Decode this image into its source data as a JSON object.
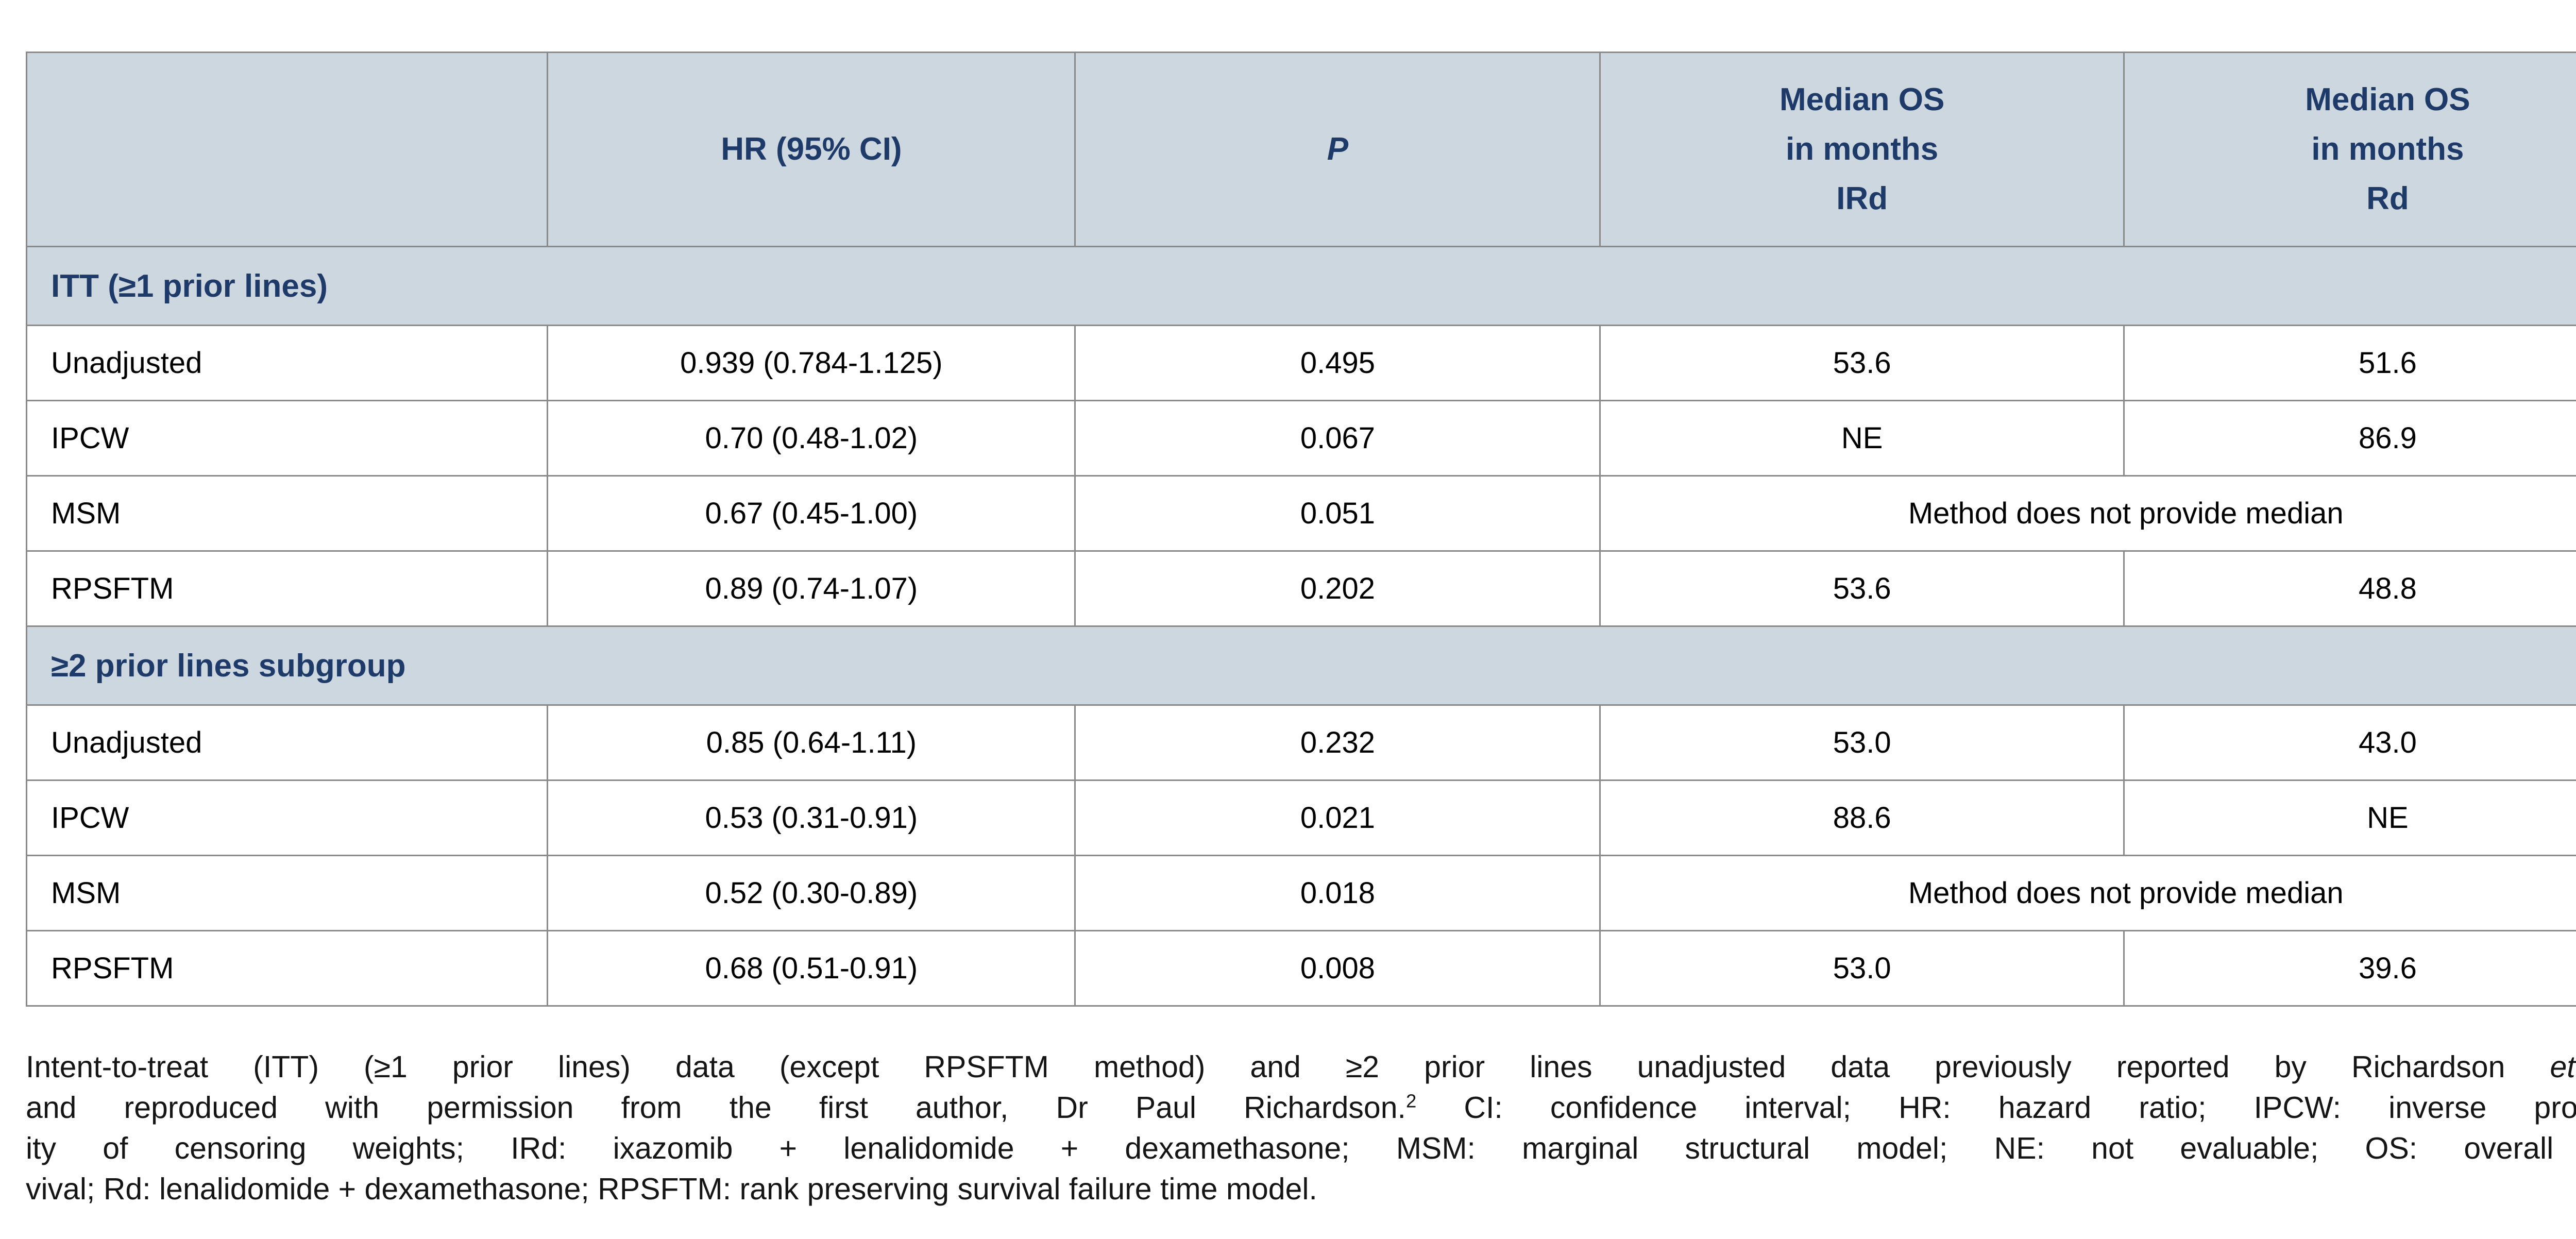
{
  "colors": {
    "header_bg": "#cdd7e0",
    "heading_text": "#1e3a69",
    "border": "#8a8a8a",
    "body_text": "#000000"
  },
  "table": {
    "header": {
      "col0": "",
      "col1": "HR (95% CI)",
      "col2": "P",
      "col3": {
        "lines": [
          "Median OS",
          "in months",
          "IRd"
        ]
      },
      "col4": {
        "lines": [
          "Median OS",
          "in months",
          "Rd"
        ]
      }
    },
    "sections": [
      {
        "title": "ITT (≥1 prior lines)",
        "rows": [
          {
            "label": "Unadjusted",
            "hr": "0.939 (0.784-1.125)",
            "p": "0.495",
            "ird": "53.6",
            "rd": "51.6"
          },
          {
            "label": "IPCW",
            "hr": "0.70 (0.48-1.02)",
            "p": "0.067",
            "ird": "NE",
            "rd": "86.9"
          },
          {
            "label": "MSM",
            "hr": "0.67 (0.45-1.00)",
            "p": "0.051",
            "merged": "Method does not provide median"
          },
          {
            "label": "RPSFTM",
            "hr": "0.89 (0.74-1.07)",
            "p": "0.202",
            "ird": "53.6",
            "rd": "48.8"
          }
        ]
      },
      {
        "title": "≥2 prior lines subgroup",
        "rows": [
          {
            "label": "Unadjusted",
            "hr": "0.85 (0.64-1.11)",
            "p": "0.232",
            "ird": "53.0",
            "rd": "43.0"
          },
          {
            "label": "IPCW",
            "hr": "0.53 (0.31-0.91)",
            "p": "0.021",
            "ird": "88.6",
            "rd": "NE"
          },
          {
            "label": "MSM",
            "hr": "0.52 (0.30-0.89)",
            "p": "0.018",
            "merged": "Method does not provide median"
          },
          {
            "label": "RPSFTM",
            "hr": "0.68 (0.51-0.91)",
            "p": "0.008",
            "ird": "53.0",
            "rd": "39.6"
          }
        ]
      }
    ]
  },
  "footnote": {
    "lines": [
      {
        "segments": [
          {
            "t": "Intent-to-treat (ITT) (≥1 prior lines) data (except RPSFTM method) and ≥2 prior lines unadjusted data previously reported by Richardson "
          },
          {
            "t": "et al.",
            "i": true
          }
        ]
      },
      {
        "segments": [
          {
            "t": "and reproduced with permission from the first author, Dr Paul Richardson."
          },
          {
            "t": "2",
            "sup": true
          },
          {
            "t": " CI: confidence interval; HR: hazard ratio; IPCW: inverse probabil-"
          }
        ]
      },
      {
        "segments": [
          {
            "t": "ity of censoring weights; IRd: ixazomib + lenalidomide + dexamethasone; MSM: marginal structural model; NE: not evaluable; OS: overall sur-"
          }
        ]
      },
      {
        "segments": [
          {
            "t": "vival; Rd: lenalidomide + dexamethasone; RPSFTM: rank preserving survival failure time model."
          }
        ]
      }
    ]
  },
  "chart_data": {
    "type": "table",
    "columns": [
      "",
      "HR (95% CI)",
      "P",
      "Median OS in months IRd",
      "Median OS in months Rd"
    ],
    "rows": [
      [
        "ITT (≥1 prior lines)",
        "",
        "",
        "",
        ""
      ],
      [
        "Unadjusted",
        "0.939 (0.784-1.125)",
        "0.495",
        "53.6",
        "51.6"
      ],
      [
        "IPCW",
        "0.70 (0.48-1.02)",
        "0.067",
        "NE",
        "86.9"
      ],
      [
        "MSM",
        "0.67 (0.45-1.00)",
        "0.051",
        "Method does not provide median",
        "Method does not provide median"
      ],
      [
        "RPSFTM",
        "0.89 (0.74-1.07)",
        "0.202",
        "53.6",
        "48.8"
      ],
      [
        "≥2 prior lines subgroup",
        "",
        "",
        "",
        ""
      ],
      [
        "Unadjusted",
        "0.85 (0.64-1.11)",
        "0.232",
        "53.0",
        "43.0"
      ],
      [
        "IPCW",
        "0.53 (0.31-0.91)",
        "0.021",
        "88.6",
        "NE"
      ],
      [
        "MSM",
        "0.52 (0.30-0.89)",
        "0.018",
        "Method does not provide median",
        "Method does not provide median"
      ],
      [
        "RPSFTM",
        "0.68 (0.51-0.91)",
        "0.008",
        "53.0",
        "39.6"
      ]
    ]
  }
}
